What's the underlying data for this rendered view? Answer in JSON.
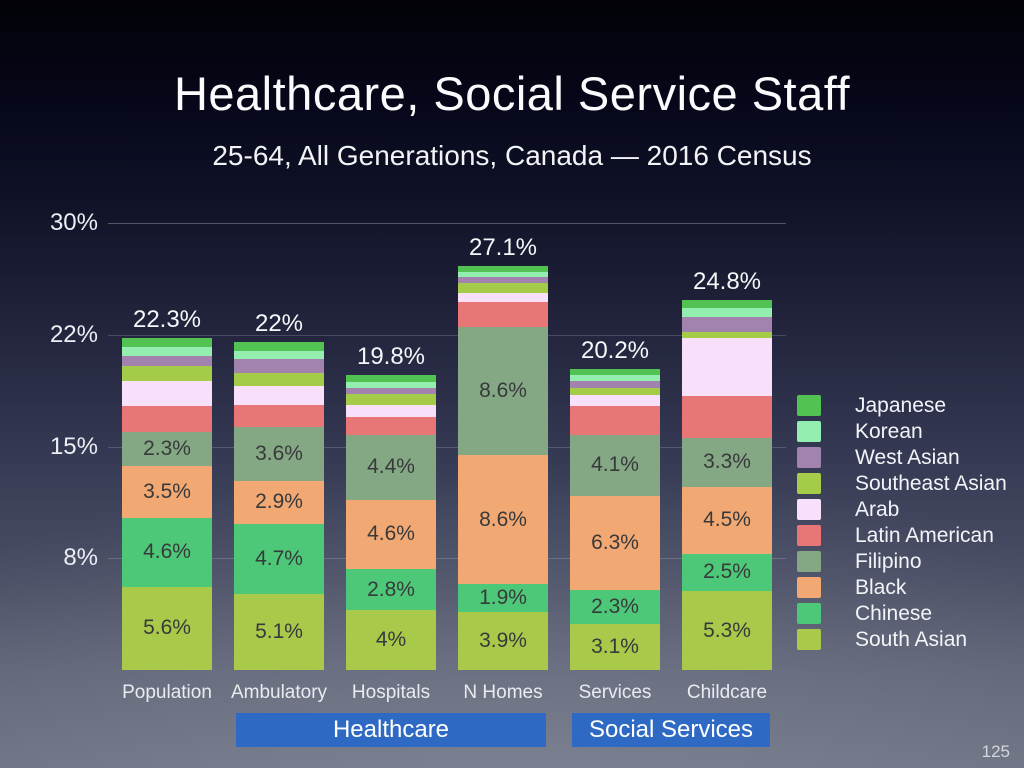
{
  "header": {
    "title": "Healthcare, Social Service Staff",
    "subtitle": "25-64, All Generations, Canada — 2016 Census"
  },
  "page": {
    "page_number": "125"
  },
  "x_groups": [
    {
      "label": "Healthcare",
      "from": "Ambulatory",
      "to": "N Homes"
    },
    {
      "label": "Social Services",
      "from": "Services",
      "to": "Childcare"
    }
  ],
  "chart_data": {
    "type": "bar",
    "stacked": true,
    "title": "Healthcare, Social Service Staff",
    "subtitle": "25-64, All Generations, Canada — 2016 Census",
    "categories": [
      "Population",
      "Ambulatory",
      "Hospitals",
      "N Homes",
      "Services",
      "Childcare"
    ],
    "totals": {
      "labels": [
        "22.3%",
        "22%",
        "19.8%",
        "27.1%",
        "20.2%",
        "24.8%"
      ],
      "values": [
        22.3,
        22,
        19.8,
        27.1,
        20.2,
        24.8
      ]
    },
    "y_axis": {
      "ticks": [
        {
          "label": "30%",
          "value": 30
        },
        {
          "label": "22%",
          "value": 22.5
        },
        {
          "label": "15%",
          "value": 15
        },
        {
          "label": "8%",
          "value": 7.5
        }
      ],
      "ylim": [
        0,
        32
      ],
      "gridlines": true
    },
    "series": [
      {
        "name": "South Asian",
        "color": "#a9c94b",
        "values": [
          5.6,
          5.1,
          4.0,
          3.9,
          3.1,
          5.3
        ],
        "labels": [
          "5.6%",
          "5.1%",
          "4%",
          "3.9%",
          "3.1%",
          "5.3%"
        ]
      },
      {
        "name": "Chinese",
        "color": "#4dc878",
        "values": [
          4.6,
          4.7,
          2.8,
          1.9,
          2.3,
          2.5
        ],
        "labels": [
          "4.6%",
          "4.7%",
          "2.8%",
          "1.9%",
          "2.3%",
          "2.5%"
        ]
      },
      {
        "name": "Black",
        "color": "#f2a873",
        "values": [
          3.5,
          2.9,
          4.6,
          8.6,
          6.3,
          4.5
        ],
        "labels": [
          "3.5%",
          "2.9%",
          "4.6%",
          "8.6%",
          "6.3%",
          "4.5%"
        ]
      },
      {
        "name": "Filipino",
        "color": "#84a784",
        "values": [
          2.3,
          3.6,
          4.4,
          8.6,
          4.1,
          3.3
        ],
        "labels": [
          "2.3%",
          "3.6%",
          "4.4%",
          "8.6%",
          "4.1%",
          "3.3%"
        ]
      },
      {
        "name": "Latin American",
        "color": "#e97676",
        "values": [
          1.7,
          1.5,
          1.15,
          1.7,
          1.9,
          2.8
        ],
        "labels": [
          "",
          "",
          "",
          "",
          "",
          ""
        ]
      },
      {
        "name": "Arab",
        "color": "#f8dffa",
        "values": [
          1.7,
          1.25,
          0.85,
          0.6,
          0.75,
          3.9
        ],
        "labels": [
          "",
          "",
          "",
          "",
          "",
          ""
        ]
      },
      {
        "name": "Southeast Asian",
        "color": "#a5cc49",
        "values": [
          1.0,
          0.85,
          0.7,
          0.65,
          0.45,
          0.4
        ],
        "labels": [
          "",
          "",
          "",
          "",
          "",
          ""
        ]
      },
      {
        "name": "West Asian",
        "color": "#a283ae",
        "values": [
          0.7,
          1.0,
          0.45,
          0.4,
          0.5,
          1.0
        ],
        "labels": [
          "",
          "",
          "",
          "",
          "",
          ""
        ]
      },
      {
        "name": "Korean",
        "color": "#93eeb0",
        "values": [
          0.6,
          0.5,
          0.35,
          0.35,
          0.4,
          0.6
        ],
        "labels": [
          "",
          "",
          "",
          "",
          "",
          ""
        ]
      },
      {
        "name": "Japanese",
        "color": "#52c352",
        "values": [
          0.6,
          0.6,
          0.5,
          0.4,
          0.4,
          0.5
        ],
        "labels": [
          "",
          "",
          "",
          "",
          "",
          ""
        ]
      }
    ],
    "legend": {
      "position": "right",
      "order": [
        "Japanese",
        "Korean",
        "West Asian",
        "Southeast Asian",
        "Arab",
        "Latin American",
        "Filipino",
        "Black",
        "Chinese",
        "South Asian"
      ]
    }
  }
}
